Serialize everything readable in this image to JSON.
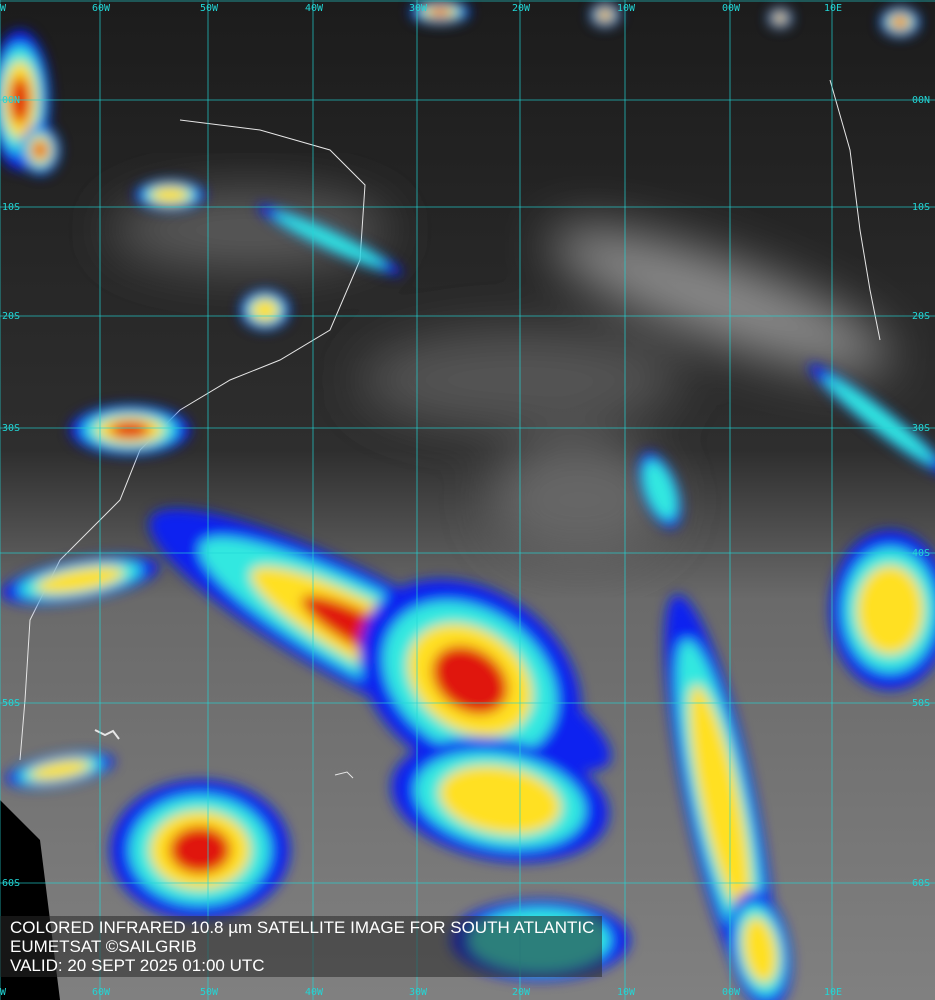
{
  "caption": {
    "title": "COLORED INFRARED 10.8 µm SATELLITE IMAGE FOR SOUTH ATLANTIC",
    "credit": "EUMETSAT ©SAILGRIB",
    "valid": "VALID:  20 SEPT 2025 01:00 UTC"
  },
  "grid": {
    "color": "#22d6d6",
    "top_labels": [
      "W",
      "60W",
      "50W",
      "40W",
      "30W",
      "20W",
      "10W",
      "00W",
      "10E"
    ],
    "bottom_labels": [
      "W",
      "60W",
      "50W",
      "40W",
      "30W",
      "20W",
      "10W",
      "00W",
      "10E"
    ],
    "left_labels": [
      "00N",
      "10S",
      "20S",
      "30S",
      "50S",
      "60S"
    ],
    "right_labels": [
      "00N",
      "10S",
      "20S",
      "30S",
      "40S",
      "50S",
      "60S"
    ]
  },
  "palette": {
    "cold_cloud_top": "#e0140a",
    "high_cloud": "#ffe020",
    "mid_cloud": "#30e8e0",
    "low_cloud": "#0a20f0",
    "land_outline": "#e6e6e6"
  }
}
